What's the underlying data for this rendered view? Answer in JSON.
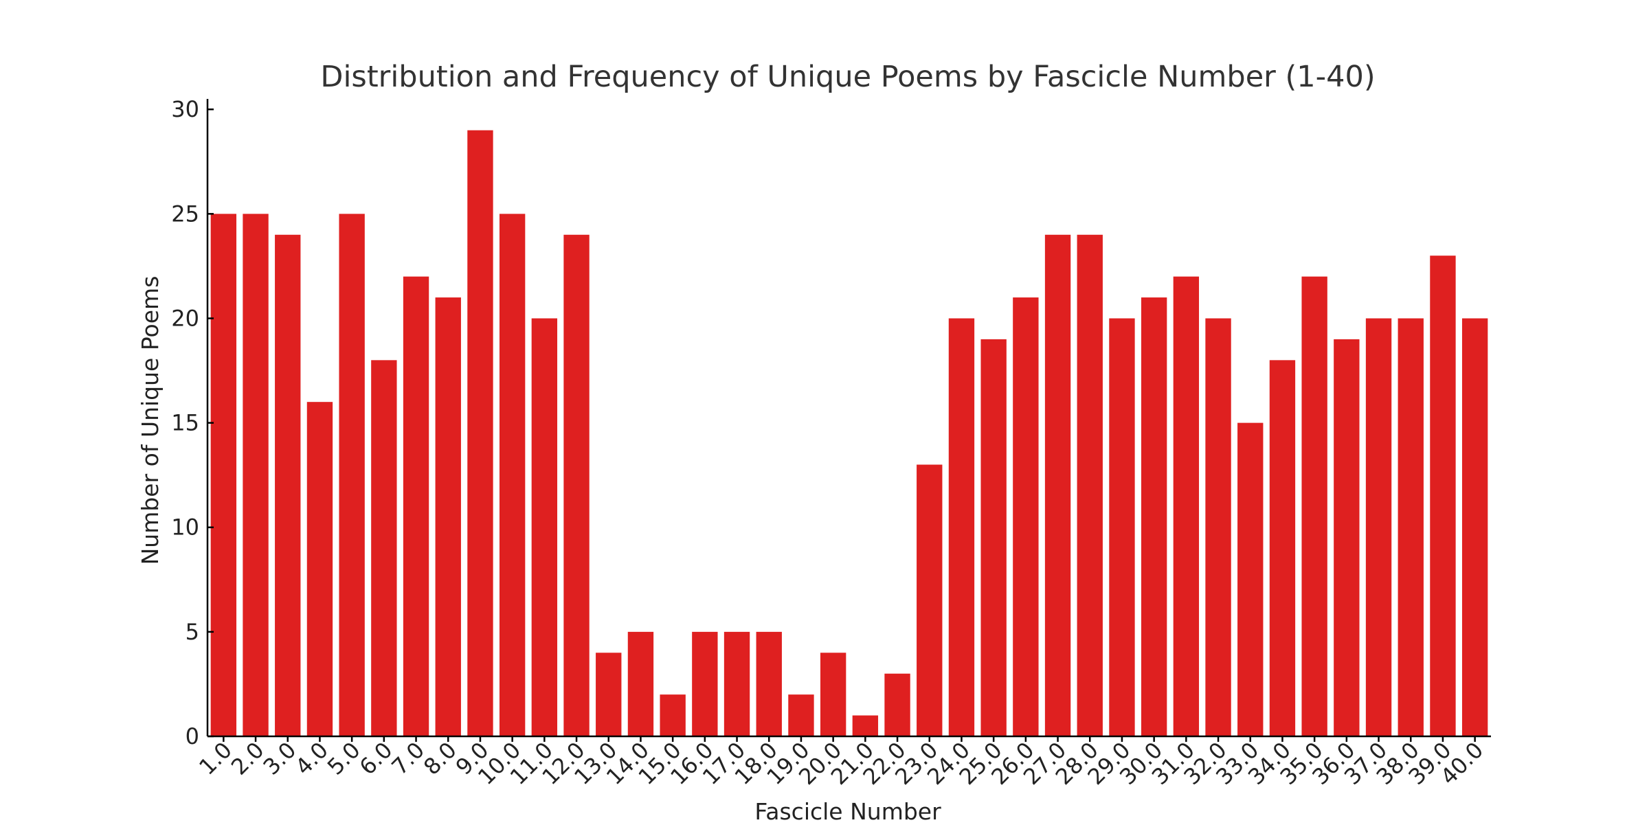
{
  "chart_data": {
    "type": "bar",
    "title": "Distribution and Frequency of Unique Poems by Fascicle Number (1-40)",
    "xlabel": "Fascicle Number",
    "ylabel": "Number of Unique Poems",
    "categories": [
      "1.0",
      "2.0",
      "3.0",
      "4.0",
      "5.0",
      "6.0",
      "7.0",
      "8.0",
      "9.0",
      "10.0",
      "11.0",
      "12.0",
      "13.0",
      "14.0",
      "15.0",
      "16.0",
      "17.0",
      "18.0",
      "19.0",
      "20.0",
      "21.0",
      "22.0",
      "23.0",
      "24.0",
      "25.0",
      "26.0",
      "27.0",
      "28.0",
      "29.0",
      "30.0",
      "31.0",
      "32.0",
      "33.0",
      "34.0",
      "35.0",
      "36.0",
      "37.0",
      "38.0",
      "39.0",
      "40.0"
    ],
    "values": [
      25,
      25,
      24,
      16,
      25,
      18,
      22,
      21,
      29,
      25,
      20,
      24,
      4,
      5,
      2,
      5,
      5,
      5,
      2,
      4,
      1,
      3,
      13,
      20,
      19,
      21,
      24,
      24,
      20,
      21,
      22,
      20,
      15,
      18,
      22,
      19,
      20,
      20,
      23,
      20
    ],
    "ylim": [
      0,
      30.5
    ],
    "yticks": [
      0,
      5,
      10,
      15,
      20,
      25,
      30
    ],
    "grid": false,
    "bar_color": "#df2020",
    "tick_label_rotation": -45
  }
}
